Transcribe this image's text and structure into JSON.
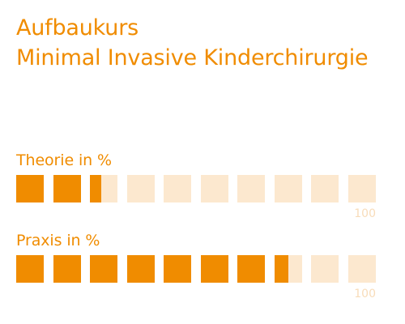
{
  "title": {
    "line1": "Aufbaukurs",
    "line2": "Minimal Invasive Kinderchirurgie"
  },
  "theory": {
    "label": "Theorie in %",
    "percent": 24,
    "max_label": "100"
  },
  "practice": {
    "label": "Praxis in %",
    "percent": 75,
    "max_label": "100"
  },
  "colors": {
    "accent": "#f08c00",
    "track": "#fce8cf",
    "max_label": "#f8dcb9"
  }
}
